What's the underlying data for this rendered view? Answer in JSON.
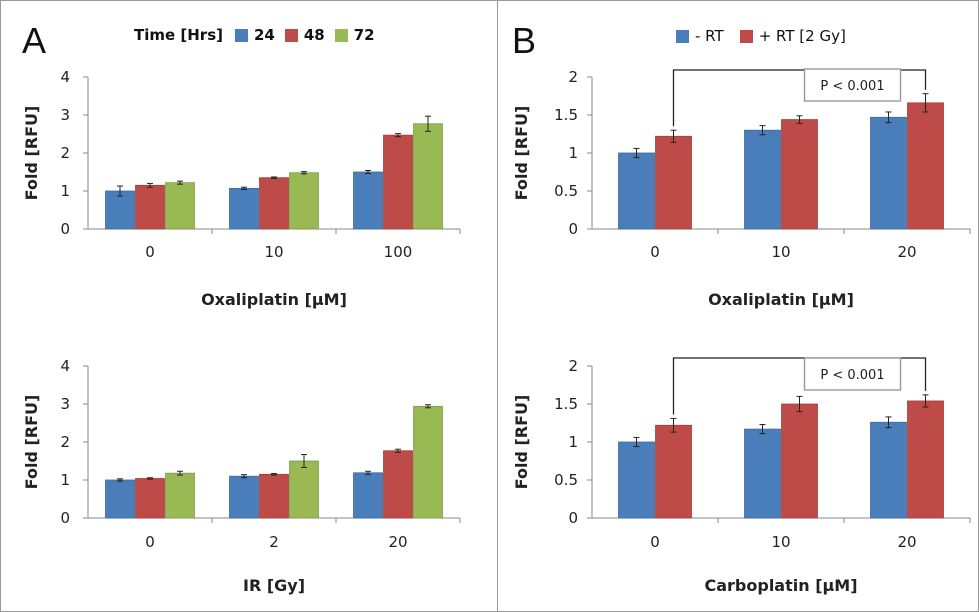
{
  "panels": {
    "a": "A",
    "b": "B"
  },
  "legend_a": {
    "title": "Time [Hrs]",
    "items": [
      {
        "label": "24",
        "color": "#4a7ebb"
      },
      {
        "label": "48",
        "color": "#be4b48"
      },
      {
        "label": "72",
        "color": "#98b954"
      }
    ]
  },
  "legend_b": {
    "items": [
      {
        "label": "- RT",
        "color": "#4a7ebb"
      },
      {
        "label": "+ RT [2 Gy]",
        "color": "#be4b48"
      }
    ]
  },
  "chart_data": [
    {
      "type": "bar",
      "panel": "A",
      "categories": [
        "0",
        "10",
        "100"
      ],
      "series": [
        {
          "name": "24",
          "values": [
            1.0,
            1.07,
            1.5
          ],
          "errors": [
            0.13,
            0.03,
            0.04
          ]
        },
        {
          "name": "48",
          "values": [
            1.15,
            1.35,
            2.47
          ],
          "errors": [
            0.05,
            0.02,
            0.04
          ]
        },
        {
          "name": "72",
          "values": [
            1.22,
            1.48,
            2.77
          ],
          "errors": [
            0.04,
            0.03,
            0.2
          ]
        }
      ],
      "xlabel": "Oxaliplatin [μM]",
      "ylabel": "Fold [RFU]",
      "ylim": [
        0,
        4
      ],
      "yticks": [
        "0",
        "1",
        "2",
        "3",
        "4"
      ],
      "grid": false
    },
    {
      "type": "bar",
      "panel": "A",
      "categories": [
        "0",
        "2",
        "20"
      ],
      "series": [
        {
          "name": "24",
          "values": [
            1.0,
            1.1,
            1.19
          ],
          "errors": [
            0.03,
            0.04,
            0.04
          ]
        },
        {
          "name": "48",
          "values": [
            1.04,
            1.15,
            1.77
          ],
          "errors": [
            0.02,
            0.02,
            0.04
          ]
        },
        {
          "name": "72",
          "values": [
            1.18,
            1.5,
            2.94
          ],
          "errors": [
            0.05,
            0.17,
            0.04
          ]
        }
      ],
      "xlabel": "IR [Gy]",
      "ylabel": "Fold [RFU]",
      "ylim": [
        0,
        4
      ],
      "yticks": [
        "0",
        "1",
        "2",
        "3",
        "4"
      ],
      "grid": false
    },
    {
      "type": "bar",
      "panel": "B",
      "categories": [
        "0",
        "10",
        "20"
      ],
      "series": [
        {
          "name": "- RT",
          "values": [
            1.0,
            1.3,
            1.47
          ],
          "errors": [
            0.06,
            0.06,
            0.07
          ]
        },
        {
          "name": "+ RT [2 Gy]",
          "values": [
            1.22,
            1.44,
            1.66
          ],
          "errors": [
            0.08,
            0.05,
            0.12
          ]
        }
      ],
      "xlabel": "Oxaliplatin [μM]",
      "ylabel": "Fold [RFU]",
      "ylim": [
        0,
        2
      ],
      "yticks": [
        "0",
        "0.5",
        "1",
        "1.5",
        "2"
      ],
      "annotation": "P < 0.001",
      "grid": false
    },
    {
      "type": "bar",
      "panel": "B",
      "categories": [
        "0",
        "10",
        "20"
      ],
      "series": [
        {
          "name": "- RT",
          "values": [
            1.0,
            1.17,
            1.26
          ],
          "errors": [
            0.06,
            0.06,
            0.07
          ]
        },
        {
          "name": "+ RT [2 Gy]",
          "values": [
            1.22,
            1.5,
            1.54
          ],
          "errors": [
            0.09,
            0.1,
            0.08
          ]
        }
      ],
      "xlabel": "Carboplatin  [μM]",
      "ylabel": "Fold [RFU]",
      "ylim": [
        0,
        2
      ],
      "yticks": [
        "0",
        "0.5",
        "1",
        "1.5",
        "2"
      ],
      "annotation": "P < 0.001",
      "grid": false
    }
  ]
}
